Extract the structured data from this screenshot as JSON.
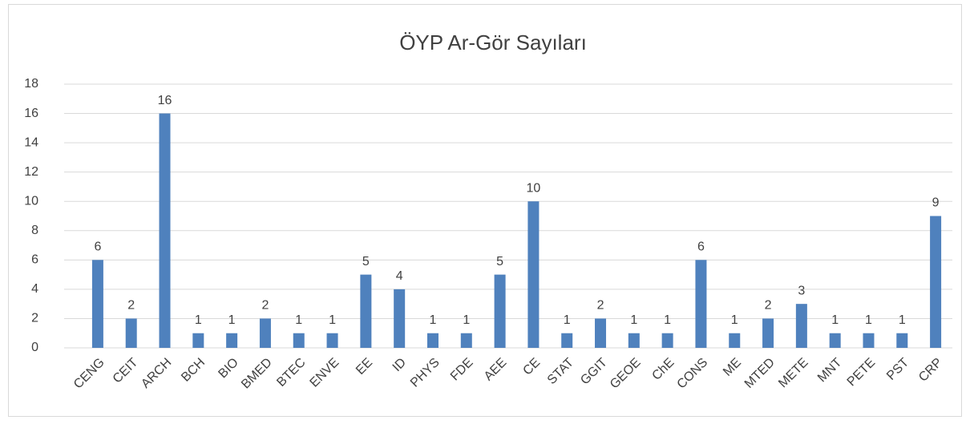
{
  "chart_data": {
    "type": "bar",
    "title": "ÖYP Ar-Gör Sayıları",
    "categories": [
      "CENG",
      "CEIT",
      "ARCH",
      "BCH",
      "BIO",
      "BMED",
      "BTEC",
      "ENVE",
      "EE",
      "ID",
      "PHYS",
      "FDE",
      "AEE",
      "CE",
      "STAT",
      "GGIT",
      "GEOE",
      "ChE",
      "CONS",
      "ME",
      "MTED",
      "METE",
      "MNT",
      "PETE",
      "PST",
      "CRP"
    ],
    "values": [
      6,
      2,
      16,
      1,
      1,
      2,
      1,
      1,
      5,
      4,
      1,
      1,
      5,
      10,
      1,
      2,
      1,
      1,
      6,
      1,
      2,
      3,
      1,
      1,
      1,
      9
    ],
    "color": "#4f81bd",
    "ylim": [
      0,
      18
    ],
    "yticks": [
      0,
      2,
      4,
      6,
      8,
      10,
      12,
      14,
      16,
      18
    ],
    "grid": true
  }
}
